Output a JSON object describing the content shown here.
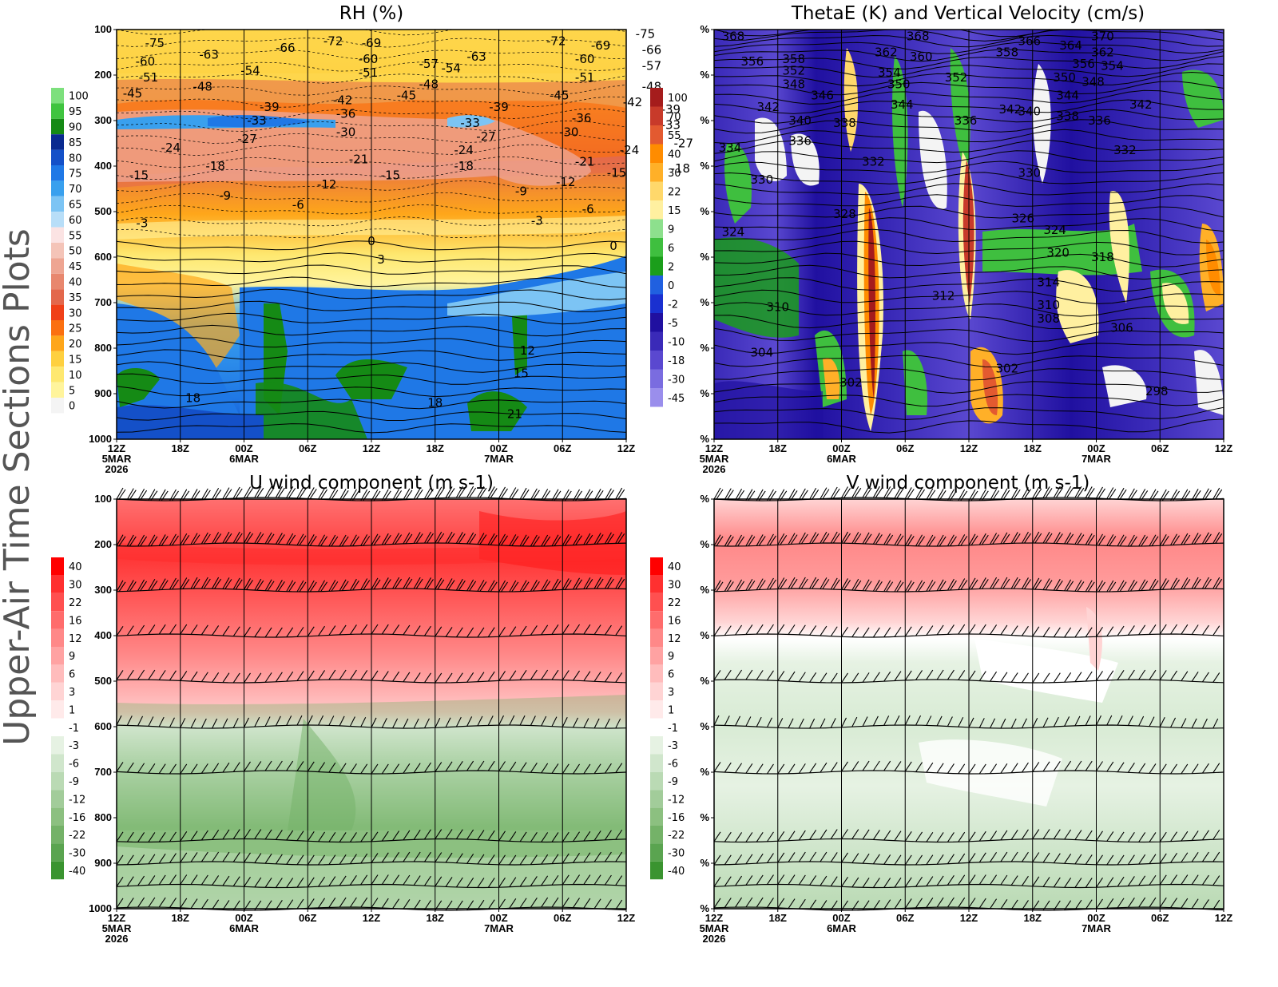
{
  "side_title": "Upper-Air Time Sections Plots",
  "time_axis": {
    "labels": [
      "12Z",
      "18Z",
      "00Z",
      "06Z",
      "12Z",
      "18Z",
      "00Z",
      "06Z",
      "12Z"
    ],
    "date_labels": [
      {
        "index": 0,
        "line1": "5MAR",
        "line2": "2026"
      },
      {
        "index": 2,
        "line1": "6MAR",
        "line2": ""
      },
      {
        "index": 6,
        "line1": "7MAR",
        "line2": ""
      }
    ]
  },
  "chart_data": [
    {
      "id": "rh",
      "type": "heatmap",
      "title": "RH (%)",
      "x": [
        "12Z 5MAR",
        "18Z",
        "00Z 6MAR",
        "06Z",
        "12Z",
        "18Z",
        "00Z 7MAR",
        "06Z",
        "12Z"
      ],
      "y_ticks": [
        "100",
        "200",
        "300",
        "400",
        "500",
        "600",
        "700",
        "800",
        "900",
        "1000"
      ],
      "ylim": [
        100,
        1000
      ],
      "colorbar": [
        "100",
        "95",
        "90",
        "85",
        "80",
        "75",
        "70",
        "65",
        "60",
        "55",
        "50",
        "45",
        "40",
        "35",
        "30",
        "25",
        "20",
        "15",
        "10",
        "5",
        "0"
      ],
      "colorbar_colors": [
        "#7de07d",
        "#3fc43f",
        "#158a15",
        "#0a2a90",
        "#1450c8",
        "#1f78e6",
        "#39a0ee",
        "#7cc4f4",
        "#b8def8",
        "#fbe3e3",
        "#f4c4b8",
        "#eea592",
        "#e8876e",
        "#e3684c",
        "#f04018",
        "#fb7010",
        "#fea61a",
        "#fed040",
        "#fee870",
        "#fff49c",
        "#f4f4f4"
      ],
      "contour_labels": [
        {
          "t": 0.6,
          "p": 130,
          "v": "-75"
        },
        {
          "t": 0.45,
          "p": 170,
          "v": "-60"
        },
        {
          "t": 1.45,
          "p": 155,
          "v": "-63"
        },
        {
          "t": 2.65,
          "p": 140,
          "v": "-66"
        },
        {
          "t": 3.4,
          "p": 125,
          "v": "-72"
        },
        {
          "t": 4.0,
          "p": 130,
          "v": "-69"
        },
        {
          "t": 3.95,
          "p": 165,
          "v": "-60"
        },
        {
          "t": 2.1,
          "p": 190,
          "v": "-54"
        },
        {
          "t": 3.95,
          "p": 195,
          "v": "-51"
        },
        {
          "t": 0.5,
          "p": 205,
          "v": "-51"
        },
        {
          "t": 1.35,
          "p": 225,
          "v": "-48"
        },
        {
          "t": 0.25,
          "p": 240,
          "v": "-45"
        },
        {
          "t": 5.65,
          "p": 160,
          "v": "-63"
        },
        {
          "t": 4.9,
          "p": 175,
          "v": "-57"
        },
        {
          "t": 5.25,
          "p": 185,
          "v": "-54"
        },
        {
          "t": 4.9,
          "p": 220,
          "v": "-48"
        },
        {
          "t": 6.9,
          "p": 125,
          "v": "-72"
        },
        {
          "t": 7.6,
          "p": 135,
          "v": "-69"
        },
        {
          "t": 8.3,
          "p": 110,
          "v": "-75"
        },
        {
          "t": 8.4,
          "p": 145,
          "v": "-66"
        },
        {
          "t": 8.4,
          "p": 180,
          "v": "-57"
        },
        {
          "t": 7.35,
          "p": 165,
          "v": "-60"
        },
        {
          "t": 7.35,
          "p": 205,
          "v": "-51"
        },
        {
          "t": 8.4,
          "p": 225,
          "v": "-48"
        },
        {
          "t": 3.55,
          "p": 255,
          "v": "-42"
        },
        {
          "t": 4.55,
          "p": 245,
          "v": "-45"
        },
        {
          "t": 2.4,
          "p": 270,
          "v": "-39"
        },
        {
          "t": 3.6,
          "p": 285,
          "v": "-36"
        },
        {
          "t": 2.2,
          "p": 300,
          "v": "-33"
        },
        {
          "t": 3.6,
          "p": 325,
          "v": "-30"
        },
        {
          "t": 2.05,
          "p": 340,
          "v": "-27"
        },
        {
          "t": 0.85,
          "p": 360,
          "v": "-24"
        },
        {
          "t": 3.8,
          "p": 385,
          "v": "-21"
        },
        {
          "t": 1.55,
          "p": 400,
          "v": "-18"
        },
        {
          "t": 0.35,
          "p": 420,
          "v": "-15"
        },
        {
          "t": 4.3,
          "p": 420,
          "v": "-15"
        },
        {
          "t": 3.3,
          "p": 440,
          "v": "-12"
        },
        {
          "t": 1.7,
          "p": 465,
          "v": "-9"
        },
        {
          "t": 2.85,
          "p": 485,
          "v": "-6"
        },
        {
          "t": 0.4,
          "p": 525,
          "v": "-3"
        },
        {
          "t": 6.0,
          "p": 270,
          "v": "-39"
        },
        {
          "t": 5.55,
          "p": 305,
          "v": "-33"
        },
        {
          "t": 5.8,
          "p": 335,
          "v": "-27"
        },
        {
          "t": 5.45,
          "p": 365,
          "v": "-24"
        },
        {
          "t": 5.45,
          "p": 400,
          "v": "-18"
        },
        {
          "t": 6.95,
          "p": 245,
          "v": "-45"
        },
        {
          "t": 8.1,
          "p": 260,
          "v": "-42"
        },
        {
          "t": 8.7,
          "p": 275,
          "v": "-39"
        },
        {
          "t": 7.3,
          "p": 295,
          "v": "-36"
        },
        {
          "t": 8.7,
          "p": 310,
          "v": "-33"
        },
        {
          "t": 7.1,
          "p": 325,
          "v": "-30"
        },
        {
          "t": 8.9,
          "p": 350,
          "v": "-27"
        },
        {
          "t": 8.05,
          "p": 365,
          "v": "-24"
        },
        {
          "t": 7.35,
          "p": 390,
          "v": "-21"
        },
        {
          "t": 8.85,
          "p": 405,
          "v": "-18"
        },
        {
          "t": 7.85,
          "p": 415,
          "v": "-15"
        },
        {
          "t": 7.05,
          "p": 435,
          "v": "-12"
        },
        {
          "t": 6.35,
          "p": 455,
          "v": "-9"
        },
        {
          "t": 7.4,
          "p": 495,
          "v": "-6"
        },
        {
          "t": 6.6,
          "p": 520,
          "v": "-3"
        },
        {
          "t": 4.0,
          "p": 565,
          "v": "0"
        },
        {
          "t": 7.8,
          "p": 575,
          "v": "0"
        },
        {
          "t": 4.15,
          "p": 605,
          "v": "3"
        },
        {
          "t": 6.45,
          "p": 805,
          "v": "12"
        },
        {
          "t": 6.35,
          "p": 855,
          "v": "15"
        },
        {
          "t": 1.2,
          "p": 910,
          "v": "18"
        },
        {
          "t": 5.0,
          "p": 920,
          "v": "18"
        },
        {
          "t": 6.25,
          "p": 945,
          "v": "21"
        }
      ]
    },
    {
      "id": "thetae",
      "type": "heatmap",
      "title": "ThetaE (K) and Vertical Velocity (cm/s)",
      "x": [
        "12Z 5MAR",
        "18Z",
        "00Z 6MAR",
        "06Z",
        "12Z",
        "18Z",
        "00Z 7MAR",
        "06Z",
        "12Z"
      ],
      "y_ticks": [
        "%",
        "%",
        "%",
        "%",
        "%",
        "%",
        "%",
        "%",
        "%",
        "%"
      ],
      "ylim": [
        100,
        1000
      ],
      "colorbar": [
        "100",
        "70",
        "55",
        "40",
        "30",
        "22",
        "15",
        "9",
        "6",
        "2",
        "0",
        "-2",
        "-5",
        "-10",
        "-18",
        "-30",
        "-45"
      ],
      "colorbar_colors": [
        "#a51c1c",
        "#c83a2a",
        "#e35a30",
        "#ff8c00",
        "#ffb028",
        "#ffd86b",
        "#fff0a0",
        "#8de08d",
        "#3fbf3f",
        "#1b9e1b",
        "#2060e0",
        "#1a30d0",
        "#2010a0",
        "#3a2ab8",
        "#5a48d0",
        "#7a6ce0",
        "#9a8eec"
      ],
      "contour_labels": [
        {
          "t": 0.3,
          "p": 115,
          "v": "368"
        },
        {
          "t": 3.2,
          "p": 115,
          "v": "368"
        },
        {
          "t": 0.6,
          "p": 170,
          "v": "356"
        },
        {
          "t": 1.25,
          "p": 165,
          "v": "358"
        },
        {
          "t": 1.25,
          "p": 190,
          "v": "352"
        },
        {
          "t": 1.25,
          "p": 220,
          "v": "348"
        },
        {
          "t": 1.7,
          "p": 245,
          "v": "346"
        },
        {
          "t": 0.85,
          "p": 270,
          "v": "342"
        },
        {
          "t": 1.35,
          "p": 300,
          "v": "340"
        },
        {
          "t": 2.05,
          "p": 305,
          "v": "338"
        },
        {
          "t": 1.35,
          "p": 345,
          "v": "336"
        },
        {
          "t": 0.25,
          "p": 360,
          "v": "334"
        },
        {
          "t": 2.7,
          "p": 150,
          "v": "362"
        },
        {
          "t": 2.75,
          "p": 195,
          "v": "354"
        },
        {
          "t": 2.9,
          "p": 220,
          "v": "350"
        },
        {
          "t": 2.95,
          "p": 265,
          "v": "344"
        },
        {
          "t": 3.25,
          "p": 160,
          "v": "360"
        },
        {
          "t": 3.8,
          "p": 205,
          "v": "352"
        },
        {
          "t": 4.6,
          "p": 150,
          "v": "358"
        },
        {
          "t": 4.65,
          "p": 275,
          "v": "342"
        },
        {
          "t": 4.95,
          "p": 280,
          "v": "340"
        },
        {
          "t": 3.95,
          "p": 300,
          "v": "336"
        },
        {
          "t": 2.5,
          "p": 390,
          "v": "332"
        },
        {
          "t": 0.75,
          "p": 430,
          "v": "330"
        },
        {
          "t": 4.95,
          "p": 125,
          "v": "366"
        },
        {
          "t": 5.6,
          "p": 135,
          "v": "364"
        },
        {
          "t": 6.1,
          "p": 115,
          "v": "370"
        },
        {
          "t": 6.1,
          "p": 150,
          "v": "362"
        },
        {
          "t": 5.8,
          "p": 175,
          "v": "356"
        },
        {
          "t": 6.25,
          "p": 180,
          "v": "354"
        },
        {
          "t": 5.5,
          "p": 205,
          "v": "350"
        },
        {
          "t": 5.95,
          "p": 215,
          "v": "348"
        },
        {
          "t": 5.55,
          "p": 245,
          "v": "344"
        },
        {
          "t": 6.7,
          "p": 265,
          "v": "342"
        },
        {
          "t": 5.55,
          "p": 290,
          "v": "338"
        },
        {
          "t": 6.05,
          "p": 300,
          "v": "336"
        },
        {
          "t": 6.45,
          "p": 365,
          "v": "332"
        },
        {
          "t": 4.95,
          "p": 415,
          "v": "330"
        },
        {
          "t": 2.05,
          "p": 505,
          "v": "328"
        },
        {
          "t": 4.85,
          "p": 515,
          "v": "326"
        },
        {
          "t": 5.35,
          "p": 540,
          "v": "324"
        },
        {
          "t": 0.3,
          "p": 545,
          "v": "324"
        },
        {
          "t": 5.4,
          "p": 590,
          "v": "320"
        },
        {
          "t": 6.1,
          "p": 600,
          "v": "318"
        },
        {
          "t": 5.25,
          "p": 655,
          "v": "314"
        },
        {
          "t": 3.6,
          "p": 685,
          "v": "312"
        },
        {
          "t": 5.25,
          "p": 705,
          "v": "310"
        },
        {
          "t": 1.0,
          "p": 710,
          "v": "310"
        },
        {
          "t": 5.25,
          "p": 735,
          "v": "308"
        },
        {
          "t": 6.4,
          "p": 755,
          "v": "306"
        },
        {
          "t": 0.75,
          "p": 810,
          "v": "304"
        },
        {
          "t": 4.6,
          "p": 845,
          "v": "302"
        },
        {
          "t": 2.15,
          "p": 875,
          "v": "302"
        },
        {
          "t": 6.95,
          "p": 895,
          "v": "298"
        }
      ]
    },
    {
      "id": "uwind",
      "type": "heatmap",
      "title": "U wind component (m s-1)",
      "x": [
        "12Z 5MAR",
        "18Z",
        "00Z 6MAR",
        "06Z",
        "12Z",
        "18Z",
        "00Z 7MAR",
        "06Z",
        "12Z"
      ],
      "y_ticks": [
        "100",
        "200",
        "300",
        "400",
        "500",
        "600",
        "700",
        "800",
        "900",
        "1000"
      ],
      "ylim": [
        100,
        1000
      ],
      "colorbar": [
        "40",
        "30",
        "22",
        "16",
        "12",
        "9",
        "6",
        "3",
        "1",
        "-1",
        "-3",
        "-6",
        "-9",
        "-12",
        "-16",
        "-22",
        "-30",
        "-40"
      ],
      "colorbar_colors": [
        "#ff0000",
        "#ff3030",
        "#ff5050",
        "#ff6c6c",
        "#ff8888",
        "#ffa2a2",
        "#ffbcbc",
        "#ffd4d4",
        "#ffeaea",
        "#ffffff",
        "#e6f2e3",
        "#d0e6cc",
        "#badab4",
        "#a2cc9a",
        "#8cc080",
        "#74b268",
        "#5aa450",
        "#3a9430"
      ],
      "barb_levels": [
        100,
        200,
        300,
        400,
        500,
        600,
        700,
        850,
        900,
        950,
        1000
      ]
    },
    {
      "id": "vwind",
      "type": "heatmap",
      "title": "V wind component (m s-1)",
      "x": [
        "12Z 5MAR",
        "18Z",
        "00Z 6MAR",
        "06Z",
        "12Z",
        "18Z",
        "00Z 7MAR",
        "06Z",
        "12Z"
      ],
      "y_ticks": [
        "%",
        "%",
        "%",
        "%",
        "%",
        "%",
        "%",
        "%",
        "%",
        "%"
      ],
      "ylim": [
        100,
        1000
      ],
      "colorbar": [
        "40",
        "30",
        "22",
        "16",
        "12",
        "9",
        "6",
        "3",
        "1",
        "-1",
        "-3",
        "-6",
        "-9",
        "-12",
        "-16",
        "-22",
        "-30",
        "-40"
      ],
      "colorbar_colors": [
        "#ff0000",
        "#ff3030",
        "#ff5050",
        "#ff6c6c",
        "#ff8888",
        "#ffa2a2",
        "#ffbcbc",
        "#ffd4d4",
        "#ffeaea",
        "#ffffff",
        "#e6f2e3",
        "#d0e6cc",
        "#badab4",
        "#a2cc9a",
        "#8cc080",
        "#74b268",
        "#5aa450",
        "#3a9430"
      ],
      "barb_levels": [
        100,
        200,
        300,
        400,
        500,
        600,
        700,
        850,
        900,
        950,
        1000
      ]
    }
  ]
}
